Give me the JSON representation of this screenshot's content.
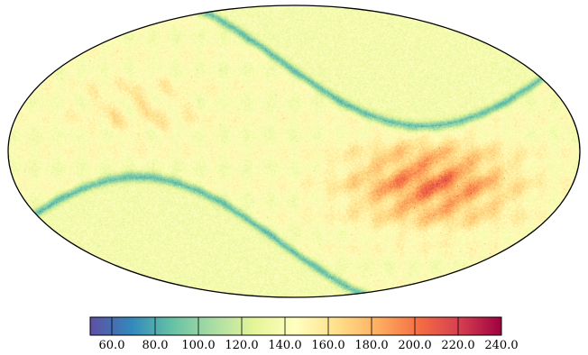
{
  "chart_data": {
    "type": "heatmap",
    "projection": "mollweide",
    "colormap": "Spectral_r",
    "colormap_stops": [
      "#5e4fa2",
      "#3288bd",
      "#66c2a5",
      "#abdda4",
      "#e6f598",
      "#ffffbf",
      "#fee08b",
      "#fdae61",
      "#f46d43",
      "#d53e4f",
      "#9e0142"
    ],
    "value_range": [
      50,
      240
    ],
    "colorbar": {
      "orientation": "horizontal",
      "placement": "bottom",
      "ticks": [
        60,
        80,
        100,
        120,
        140,
        160,
        180,
        200,
        220,
        240
      ],
      "tick_labels": [
        "60.0",
        "80.0",
        "100.0",
        "120.0",
        "140.0",
        "160.0",
        "180.0",
        "200.0",
        "220.0",
        "240.0"
      ]
    },
    "title": "",
    "features": {
      "background_level": 135,
      "ecliptic_band_low": 85,
      "scan_band_level": 150,
      "hotspot_peak": 235
    }
  }
}
